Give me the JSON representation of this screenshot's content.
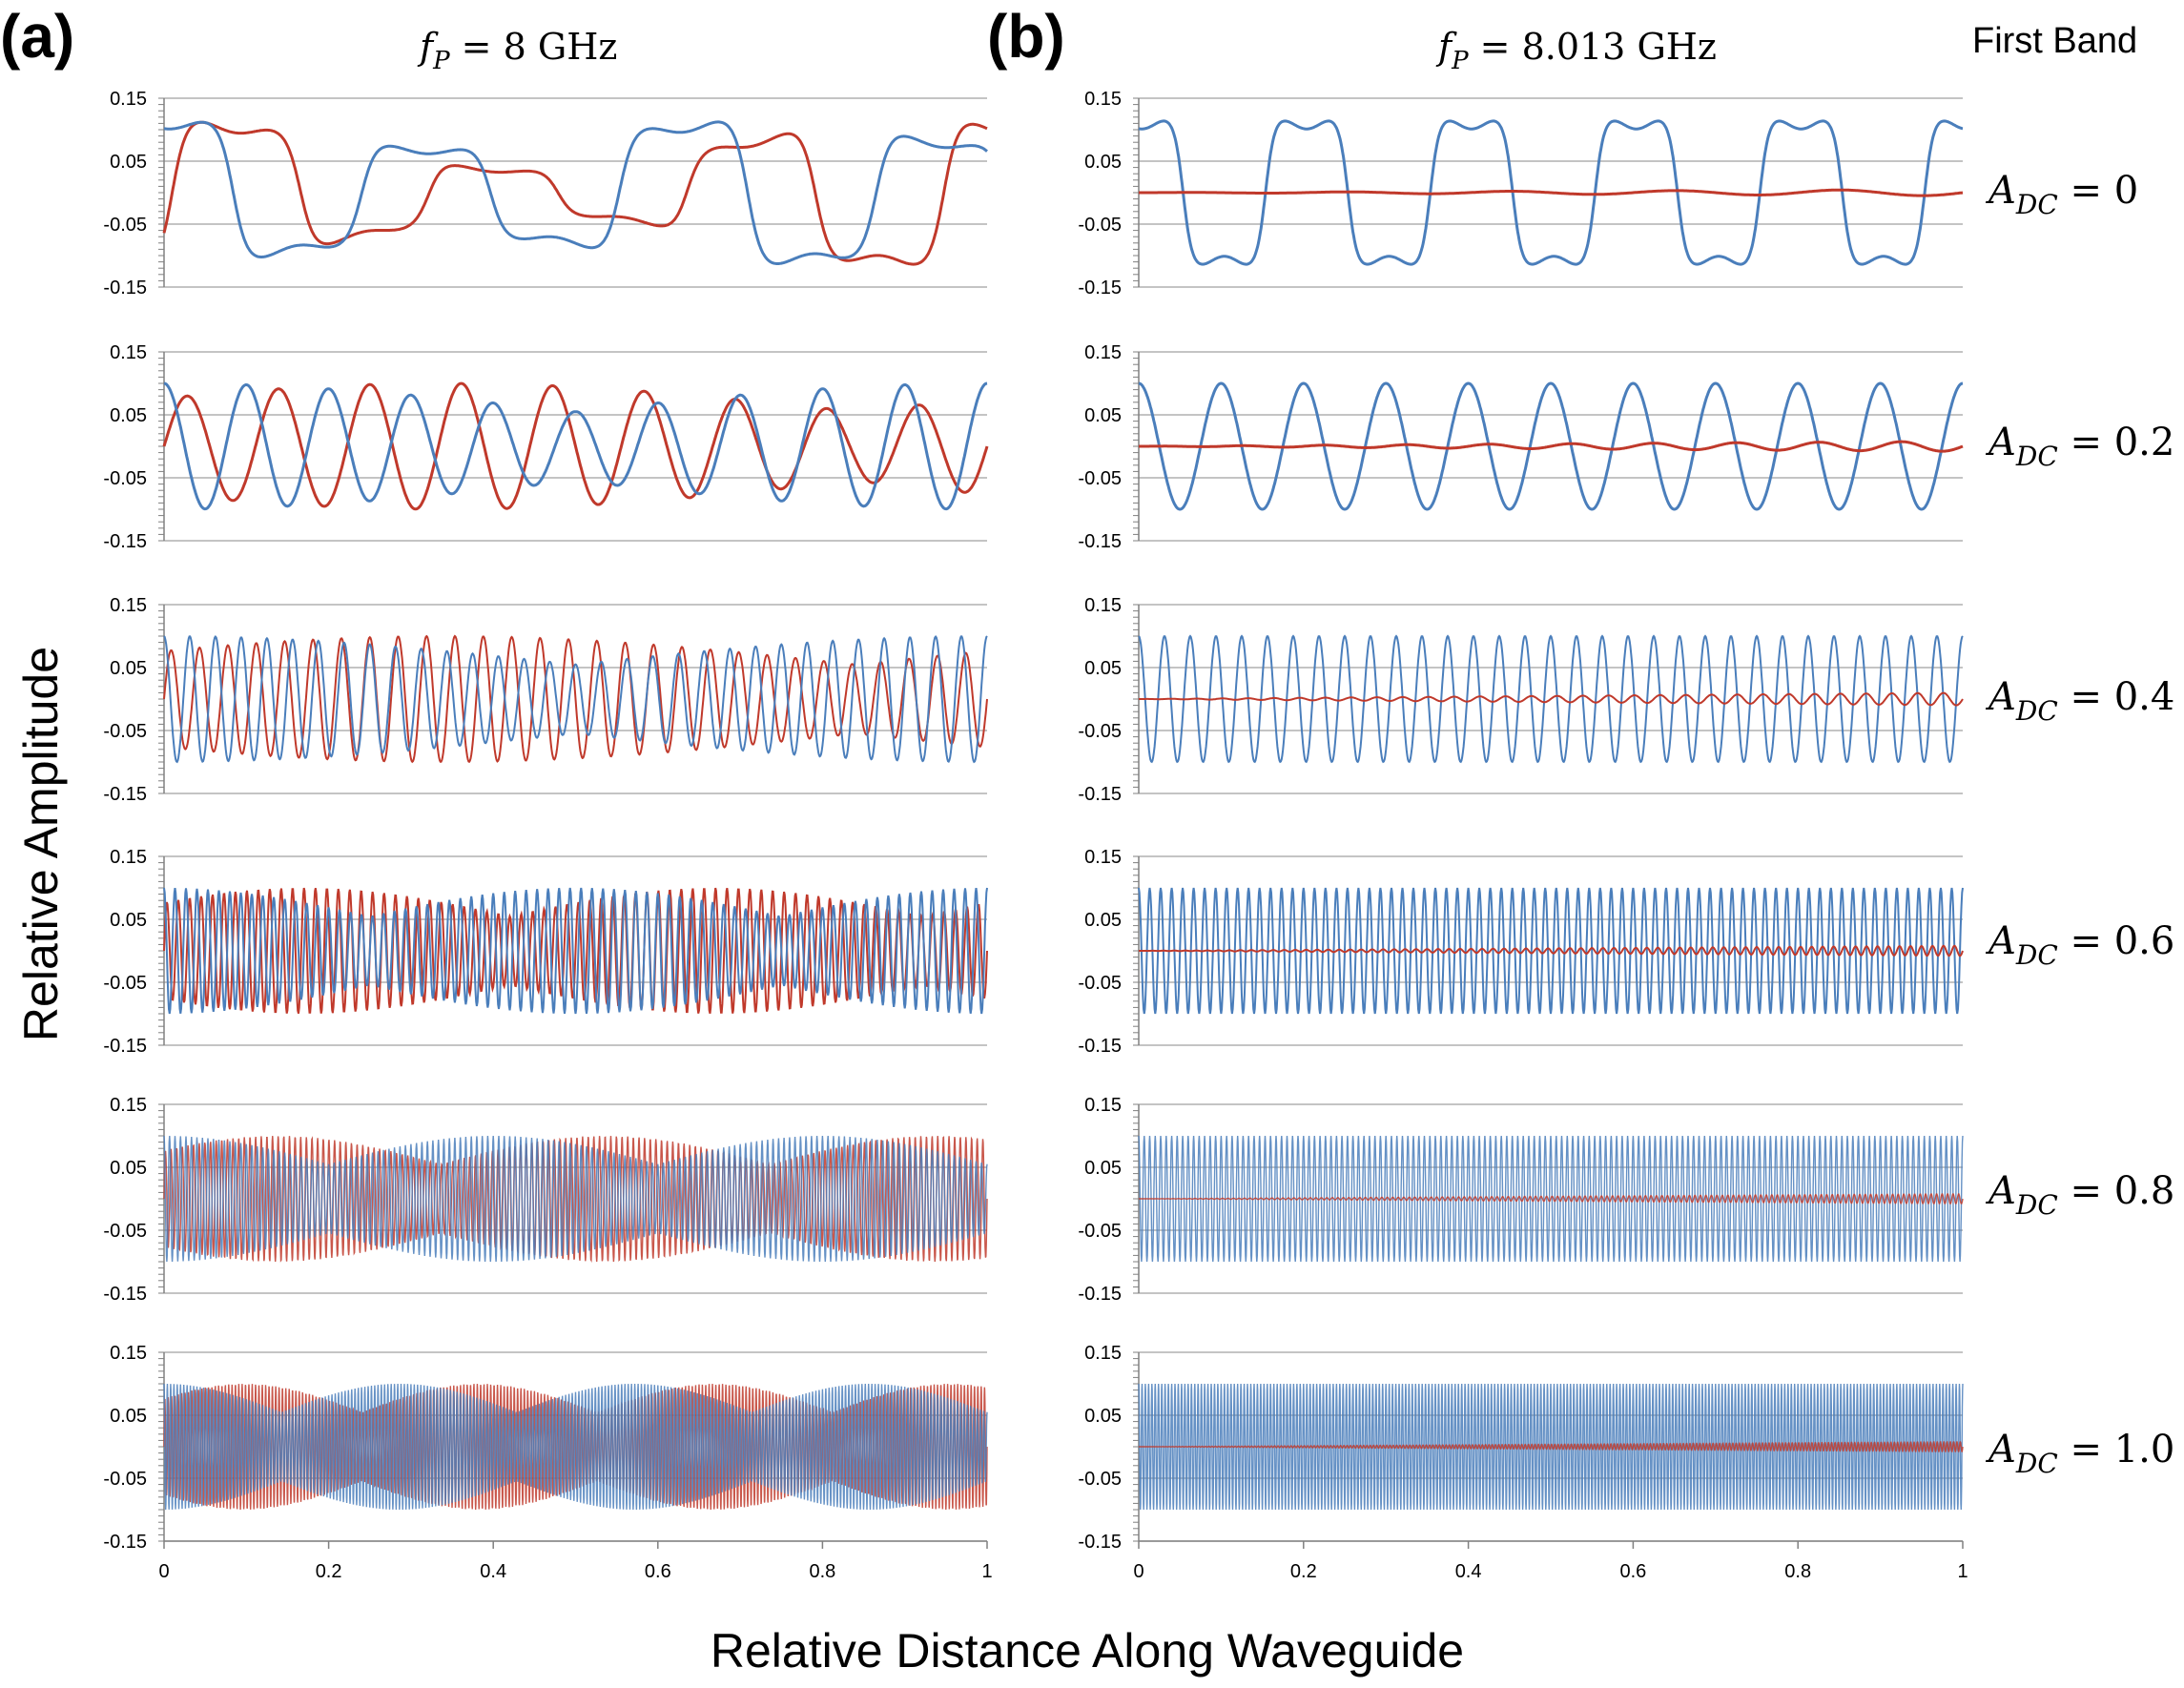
{
  "panels": {
    "a": {
      "label": "(a)",
      "fp_symbol": "f",
      "fp_sub": "P",
      "fp_value": " = 8 GHz"
    },
    "b": {
      "label": "(b)",
      "fp_symbol": "f",
      "fp_sub": "P",
      "fp_value": " = 8.013 GHz"
    }
  },
  "band_label": "First Band",
  "adc_labels": [
    {
      "symbol": "A",
      "sub": "DC",
      "value": " = 0"
    },
    {
      "symbol": "A",
      "sub": "DC",
      "value": " = 0.2"
    },
    {
      "symbol": "A",
      "sub": "DC",
      "value": " = 0.4"
    },
    {
      "symbol": "A",
      "sub": "DC",
      "value": " = 0.6"
    },
    {
      "symbol": "A",
      "sub": "DC",
      "value": " = 0.8"
    },
    {
      "symbol": "A",
      "sub": "DC",
      "value": " = 1.0"
    }
  ],
  "colors": {
    "blue": "#4a7ebb",
    "red": "#c0392b",
    "grid": "#a0a0a0",
    "axis": "#808080"
  },
  "chart_data": {
    "type": "line",
    "xlabel": "Relative Distance Along Waveguide",
    "ylabel": "Relative Amplitude",
    "xlim": [
      0,
      1
    ],
    "ylim": [
      -0.15,
      0.15
    ],
    "x_ticks": [
      "0",
      "0.2",
      "0.4",
      "0.6",
      "0.8",
      "1"
    ],
    "y_ticks": [
      "0.15",
      "0.05",
      "-0.05",
      "-0.15"
    ],
    "y_tick_values": [
      0.15,
      0.05,
      -0.05,
      -0.15
    ],
    "series_names": [
      "blue",
      "red"
    ],
    "panel_a": [
      {
        "adc": 0,
        "blue_amp": 0.11,
        "red_amp": 0.11,
        "blue_cycles": 3.2,
        "red_cycles": 3.2,
        "envelope_cycles": 0,
        "style": "square",
        "approx": true
      },
      {
        "adc": 0.2,
        "blue_amp": 0.1,
        "red_amp": 0.1,
        "blue_cycles": 10,
        "red_cycles": 9,
        "envelope_cycles": 1,
        "approx": true
      },
      {
        "adc": 0.4,
        "blue_amp": 0.1,
        "red_amp": 0.1,
        "blue_cycles": 32,
        "red_cycles": 29,
        "envelope_cycles": 1,
        "approx": true
      },
      {
        "adc": 0.6,
        "blue_amp": 0.1,
        "red_amp": 0.1,
        "blue_cycles": 75,
        "red_cycles": 72,
        "envelope_cycles": 2,
        "approx": true
      },
      {
        "adc": 0.8,
        "blue_amp": 0.1,
        "red_amp": 0.1,
        "blue_cycles": 150,
        "red_cycles": 146,
        "envelope_cycles": 2.5,
        "approx": true
      },
      {
        "adc": 1.0,
        "blue_amp": 0.1,
        "red_amp": 0.1,
        "blue_cycles": 250,
        "red_cycles": 245,
        "envelope_cycles": 3.5,
        "approx": true
      }
    ],
    "panel_b": [
      {
        "adc": 0,
        "blue_amp": 0.11,
        "red_amp": 0.005,
        "blue_cycles": 5,
        "style": "square",
        "approx": true
      },
      {
        "adc": 0.2,
        "blue_amp": 0.1,
        "red_amp": 0.008,
        "blue_cycles": 10,
        "approx": true
      },
      {
        "adc": 0.4,
        "blue_amp": 0.1,
        "red_amp": 0.01,
        "blue_cycles": 32,
        "approx": true
      },
      {
        "adc": 0.6,
        "blue_amp": 0.1,
        "red_amp": 0.008,
        "blue_cycles": 75,
        "approx": true
      },
      {
        "adc": 0.8,
        "blue_amp": 0.1,
        "red_amp": 0.008,
        "blue_cycles": 150,
        "approx": true
      },
      {
        "adc": 1.0,
        "blue_amp": 0.1,
        "red_amp": 0.008,
        "blue_cycles": 250,
        "approx": true
      }
    ]
  }
}
